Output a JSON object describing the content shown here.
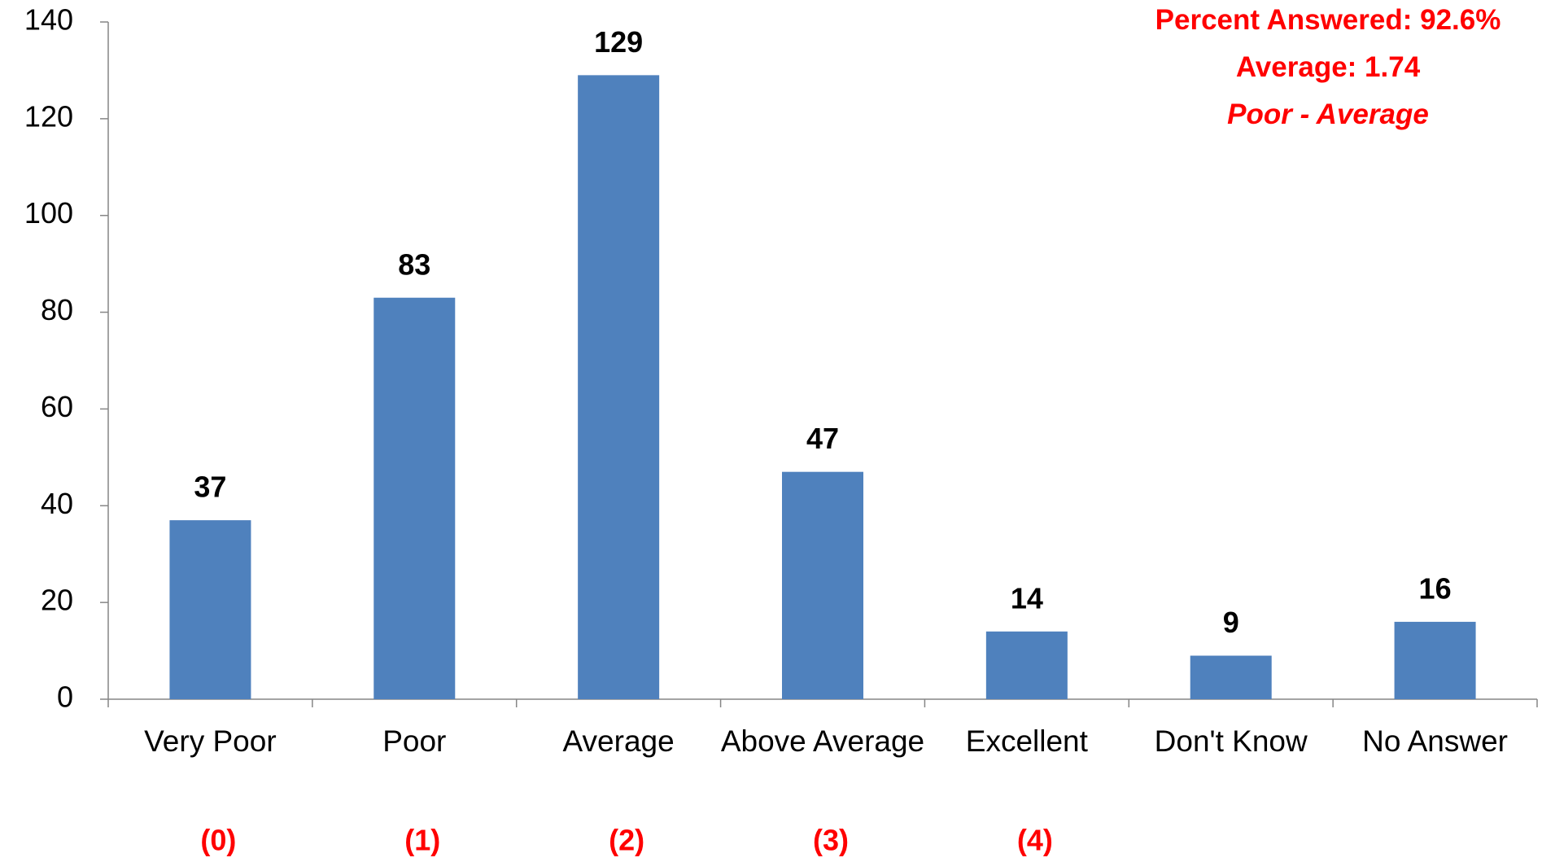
{
  "chart_data": {
    "type": "bar",
    "categories": [
      "Very Poor",
      "Poor",
      "Average",
      "Above Average",
      "Excellent",
      "Don't Know",
      "No Answer"
    ],
    "scale_labels": [
      "(0)",
      "(1)",
      "(2)",
      "(3)",
      "(4)",
      null,
      null
    ],
    "values": [
      37,
      83,
      129,
      47,
      14,
      9,
      16
    ],
    "color": "#4f81bd",
    "ylim": [
      0,
      140
    ],
    "yticks": [
      0,
      20,
      40,
      60,
      80,
      100,
      120,
      140
    ],
    "grid": false,
    "annotations": [
      "Percent Answered: 92.6%",
      "Average: 1.74",
      "Poor - Average"
    ]
  }
}
